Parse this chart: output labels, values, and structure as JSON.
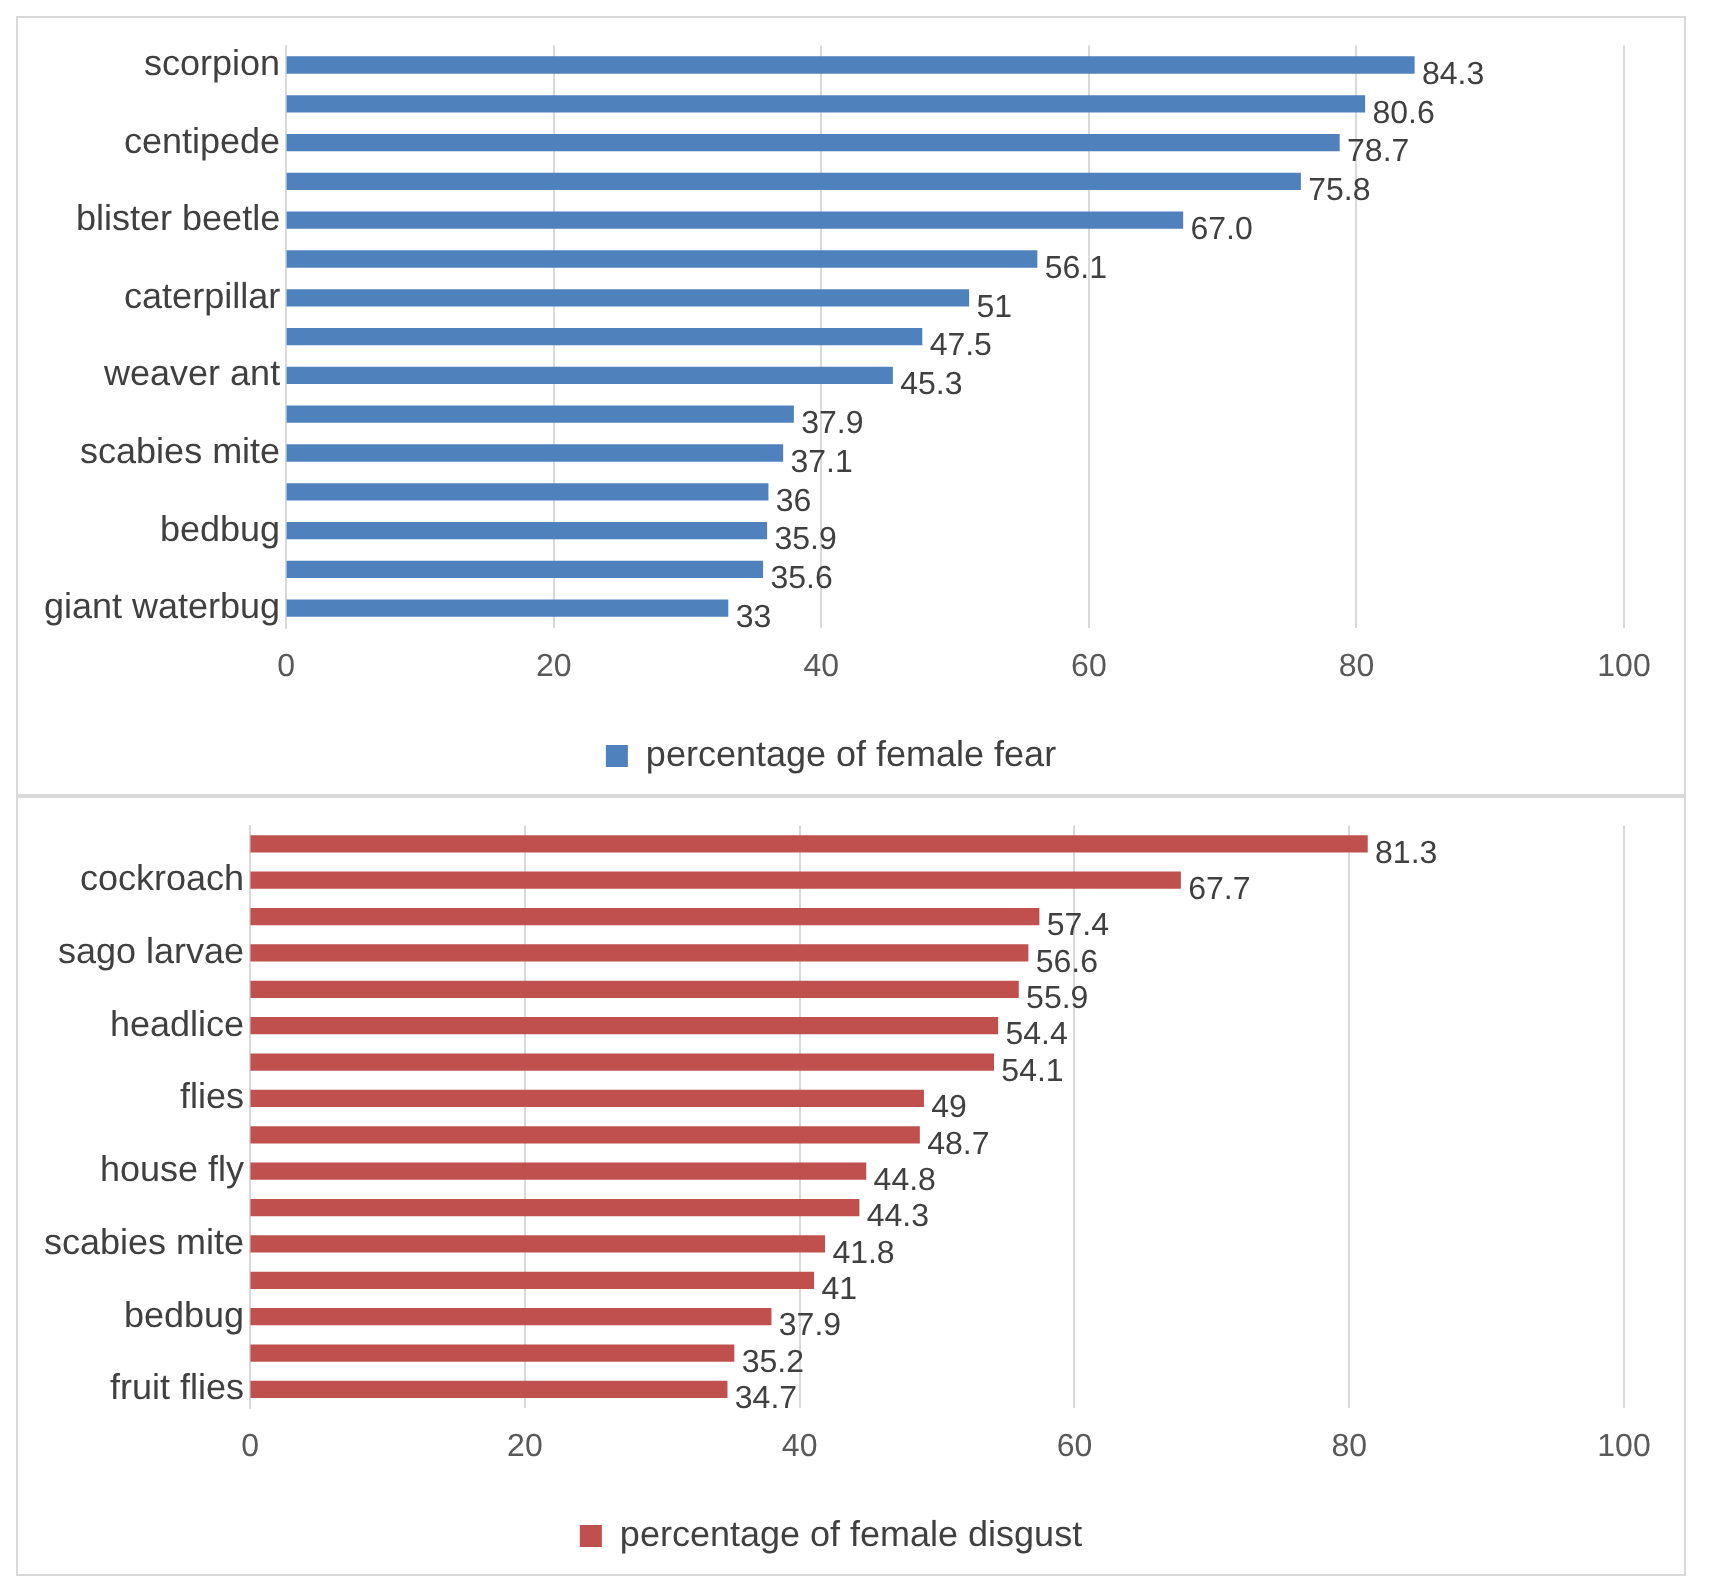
{
  "chart_data": [
    {
      "type": "bar",
      "orientation": "horizontal",
      "categories": [
        "scorpion",
        null,
        "centipede",
        null,
        "blister beetle",
        null,
        "caterpillar",
        null,
        "weaver ant",
        null,
        "scabies mite",
        null,
        "bedbug",
        null,
        "giant waterbug"
      ],
      "series": [
        {
          "name": "percentage of female fear",
          "color": "#4f81bd",
          "values": [
            84.3,
            80.6,
            78.7,
            75.8,
            67.0,
            56.1,
            51,
            47.5,
            45.3,
            37.9,
            37.1,
            36,
            35.9,
            35.6,
            33
          ],
          "value_labels": [
            "84.3",
            "80.6",
            "78.7",
            "75.8",
            "67.0",
            "56.1",
            "51",
            "47.5",
            "45.3",
            "37.9",
            "37.1",
            "36",
            "35.9",
            "35.6",
            "33"
          ]
        }
      ],
      "xlim": [
        0,
        100
      ],
      "xticks": [
        0,
        20,
        40,
        60,
        80,
        100
      ],
      "grid": "x",
      "legend": "bottom"
    },
    {
      "type": "bar",
      "orientation": "horizontal",
      "categories": [
        null,
        "cockroach",
        null,
        "sago larvae",
        null,
        "headlice",
        null,
        "flies",
        null,
        "house fly",
        null,
        "scabies mite",
        null,
        "bedbug",
        null,
        "fruit flies"
      ],
      "series": [
        {
          "name": "percentage of female disgust",
          "color": "#c0504d",
          "values": [
            81.3,
            67.7,
            57.4,
            56.6,
            55.9,
            54.4,
            54.1,
            49,
            48.7,
            44.8,
            44.3,
            41.8,
            41,
            37.9,
            35.2,
            34.7
          ],
          "value_labels": [
            "81.3",
            "67.7",
            "57.4",
            "56.6",
            "55.9",
            "54.4",
            "54.1",
            "49",
            "48.7",
            "44.8",
            "44.3",
            "41.8",
            "41",
            "37.9",
            "35.2",
            "34.7"
          ]
        }
      ],
      "xlim": [
        0,
        100
      ],
      "xticks": [
        0,
        20,
        40,
        60,
        80,
        100
      ],
      "grid": "x",
      "legend": "bottom"
    }
  ]
}
